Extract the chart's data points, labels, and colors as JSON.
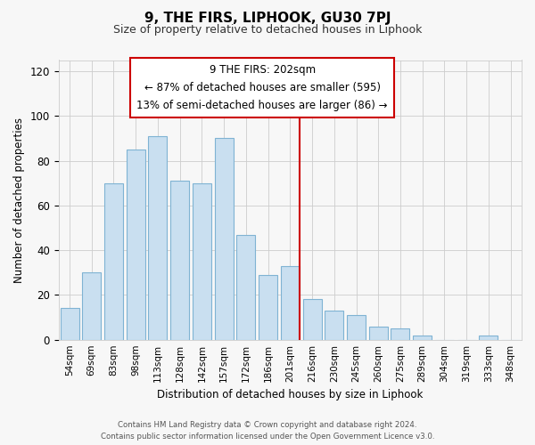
{
  "title": "9, THE FIRS, LIPHOOK, GU30 7PJ",
  "subtitle": "Size of property relative to detached houses in Liphook",
  "xlabel": "Distribution of detached houses by size in Liphook",
  "ylabel": "Number of detached properties",
  "categories": [
    "54sqm",
    "69sqm",
    "83sqm",
    "98sqm",
    "113sqm",
    "128sqm",
    "142sqm",
    "157sqm",
    "172sqm",
    "186sqm",
    "201sqm",
    "216sqm",
    "230sqm",
    "245sqm",
    "260sqm",
    "275sqm",
    "289sqm",
    "304sqm",
    "319sqm",
    "333sqm",
    "348sqm"
  ],
  "values": [
    14,
    30,
    70,
    85,
    91,
    71,
    70,
    90,
    47,
    29,
    33,
    18,
    13,
    11,
    6,
    5,
    2,
    0,
    0,
    2,
    0
  ],
  "bar_color": "#c9dff0",
  "bar_edge_color": "#7fb3d3",
  "reference_line_color": "#cc0000",
  "annotation_title": "9 THE FIRS: 202sqm",
  "annotation_line1": "← 87% of detached houses are smaller (595)",
  "annotation_line2": "13% of semi-detached houses are larger (86) →",
  "annotation_box_color": "#ffffff",
  "annotation_box_edge_color": "#cc0000",
  "ylim": [
    0,
    125
  ],
  "yticks": [
    0,
    20,
    40,
    60,
    80,
    100,
    120
  ],
  "background_color": "#f7f7f7",
  "grid_color": "#cccccc",
  "footer_line1": "Contains HM Land Registry data © Crown copyright and database right 2024.",
  "footer_line2": "Contains public sector information licensed under the Open Government Licence v3.0."
}
